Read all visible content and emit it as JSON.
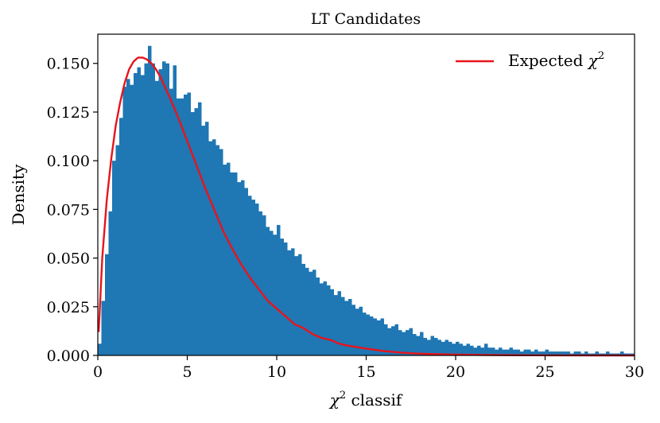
{
  "chart_data": {
    "type": "bar",
    "title": "LT Candidates",
    "xlabel_symbol": "χ",
    "xlabel_sup": "2",
    "xlabel_rest": " classif",
    "ylabel": "Density",
    "xlim": [
      0,
      30
    ],
    "ylim": [
      0,
      0.165
    ],
    "x_ticks": [
      0,
      5,
      10,
      15,
      20,
      25,
      30
    ],
    "x_tick_labels": [
      "0",
      "5",
      "10",
      "15",
      "20",
      "25",
      "30"
    ],
    "y_ticks": [
      0.0,
      0.025,
      0.05,
      0.075,
      0.1,
      0.125,
      0.15
    ],
    "y_tick_labels": [
      "0.000",
      "0.025",
      "0.050",
      "0.075",
      "0.100",
      "0.125",
      "0.150"
    ],
    "grid": false,
    "legend": {
      "placement": "top-right",
      "label_text": "Expected ",
      "label_symbol": "χ",
      "label_sup": "2"
    },
    "bar_color": "#1f77b4",
    "line_color": "#e8141c",
    "histogram": {
      "bin_width": 0.2,
      "bin_start": 0,
      "densities": [
        0.006,
        0.028,
        0.052,
        0.074,
        0.1,
        0.108,
        0.122,
        0.138,
        0.142,
        0.139,
        0.145,
        0.148,
        0.144,
        0.15,
        0.159,
        0.15,
        0.141,
        0.147,
        0.151,
        0.15,
        0.137,
        0.149,
        0.132,
        0.132,
        0.134,
        0.135,
        0.125,
        0.127,
        0.13,
        0.118,
        0.12,
        0.11,
        0.111,
        0.108,
        0.106,
        0.098,
        0.099,
        0.094,
        0.094,
        0.089,
        0.09,
        0.086,
        0.082,
        0.08,
        0.078,
        0.074,
        0.072,
        0.066,
        0.064,
        0.062,
        0.067,
        0.06,
        0.058,
        0.054,
        0.055,
        0.051,
        0.052,
        0.047,
        0.045,
        0.043,
        0.044,
        0.04,
        0.037,
        0.038,
        0.036,
        0.034,
        0.031,
        0.033,
        0.03,
        0.028,
        0.029,
        0.026,
        0.024,
        0.025,
        0.022,
        0.021,
        0.02,
        0.019,
        0.018,
        0.019,
        0.016,
        0.014,
        0.015,
        0.016,
        0.013,
        0.012,
        0.013,
        0.014,
        0.011,
        0.01,
        0.012,
        0.009,
        0.008,
        0.01,
        0.009,
        0.008,
        0.007,
        0.008,
        0.007,
        0.006,
        0.007,
        0.006,
        0.005,
        0.006,
        0.005,
        0.004,
        0.005,
        0.004,
        0.006,
        0.004,
        0.004,
        0.003,
        0.004,
        0.003,
        0.003,
        0.004,
        0.003,
        0.003,
        0.002,
        0.003,
        0.003,
        0.002,
        0.003,
        0.002,
        0.002,
        0.003,
        0.002,
        0.002,
        0.002,
        0.002,
        0.002,
        0.002,
        0.001,
        0.002,
        0.002,
        0.001,
        0.002,
        0.001,
        0.001,
        0.002,
        0.001,
        0.001,
        0.002,
        0.001,
        0.001,
        0.001,
        0.002,
        0.001,
        0.001,
        0.001
      ]
    },
    "expected_curve": {
      "x": [
        0.05,
        0.25,
        0.5,
        0.75,
        1.0,
        1.25,
        1.5,
        1.75,
        2.0,
        2.25,
        2.5,
        2.75,
        3.0,
        3.25,
        3.5,
        3.75,
        4.0,
        4.5,
        5.0,
        5.5,
        6.0,
        6.5,
        7.0,
        7.5,
        8.0,
        8.5,
        9.0,
        9.5,
        10.0,
        10.5,
        11.0,
        11.5,
        12.0,
        12.5,
        13.0,
        13.5,
        14.0,
        15.0,
        16.0,
        17.0,
        18.0,
        19.0,
        20.0,
        22.0,
        24.0,
        26.0,
        28.0,
        30.0
      ],
      "y": [
        0.012,
        0.05,
        0.08,
        0.101,
        0.118,
        0.13,
        0.14,
        0.147,
        0.151,
        0.153,
        0.153,
        0.152,
        0.15,
        0.147,
        0.143,
        0.138,
        0.133,
        0.122,
        0.11,
        0.098,
        0.086,
        0.075,
        0.064,
        0.055,
        0.047,
        0.04,
        0.034,
        0.028,
        0.024,
        0.02,
        0.016,
        0.014,
        0.011,
        0.009,
        0.008,
        0.006,
        0.005,
        0.0035,
        0.0022,
        0.0014,
        0.0009,
        0.0006,
        0.0004,
        0.0002,
        0.0001,
        5e-05,
        2e-05,
        1e-05
      ]
    }
  }
}
